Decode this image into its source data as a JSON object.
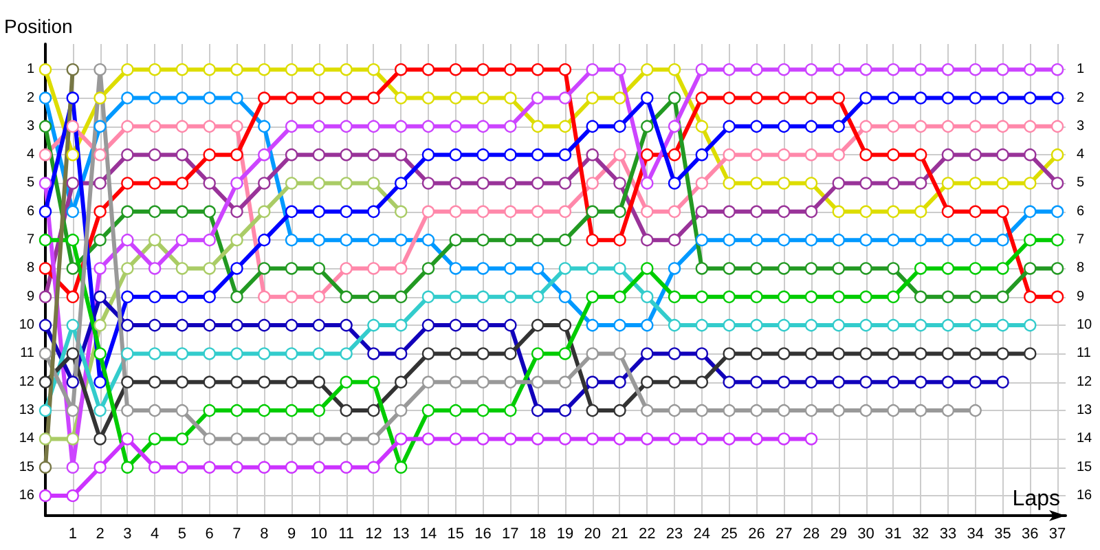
{
  "chart_data": {
    "type": "line",
    "xlabel": "Laps",
    "ylabel": "Position",
    "x": [
      0,
      1,
      2,
      3,
      4,
      5,
      6,
      7,
      8,
      9,
      10,
      11,
      12,
      13,
      14,
      15,
      16,
      17,
      18,
      19,
      20,
      21,
      22,
      23,
      24,
      25,
      26,
      27,
      28,
      29,
      30,
      31,
      32,
      33,
      34,
      35,
      36,
      37
    ],
    "xlim": [
      0,
      37.3
    ],
    "xticks": [
      1,
      2,
      3,
      4,
      5,
      6,
      7,
      8,
      9,
      10,
      11,
      12,
      13,
      14,
      15,
      16,
      17,
      18,
      19,
      20,
      21,
      22,
      23,
      24,
      25,
      26,
      27,
      28,
      29,
      30,
      31,
      32,
      33,
      34,
      35,
      36,
      37
    ],
    "ylim": [
      16.7,
      0.1
    ],
    "yticks": [
      1,
      2,
      3,
      4,
      5,
      6,
      7,
      8,
      9,
      10,
      11,
      12,
      13,
      14,
      15,
      16
    ],
    "y2lim": [
      16.7,
      0.1
    ],
    "y2ticks": [
      1,
      2,
      3,
      4,
      5,
      6,
      7,
      8,
      9,
      10,
      11,
      12,
      13,
      14,
      15,
      16
    ],
    "grid": true,
    "marker": "circle",
    "line_style": "solid",
    "series": [
      {
        "color": "#dddd00",
        "values": [
          1,
          4,
          2,
          1,
          1,
          1,
          1,
          1,
          1,
          1,
          1,
          1,
          1,
          2,
          2,
          2,
          2,
          2,
          3,
          3,
          2,
          2,
          1,
          1,
          3,
          5,
          5,
          5,
          5,
          6,
          6,
          6,
          6,
          5,
          5,
          5,
          5,
          4
        ]
      },
      {
        "color": "#0099ff",
        "values": [
          2,
          6,
          3,
          2,
          2,
          2,
          2,
          2,
          3,
          7,
          7,
          7,
          7,
          7,
          7,
          8,
          8,
          8,
          8,
          9,
          10,
          10,
          10,
          8,
          7,
          7,
          7,
          7,
          7,
          7,
          7,
          7,
          7,
          7,
          7,
          7,
          6,
          6
        ]
      },
      {
        "color": "#ff88aa",
        "values": [
          4,
          3,
          4,
          3,
          3,
          3,
          3,
          3,
          9,
          9,
          9,
          8,
          8,
          8,
          6,
          6,
          6,
          6,
          6,
          6,
          5,
          4,
          6,
          6,
          5,
          4,
          4,
          4,
          4,
          4,
          3,
          3,
          3,
          3,
          3,
          3,
          3,
          3
        ]
      },
      {
        "color": "#993399",
        "values": [
          9,
          5,
          5,
          4,
          4,
          4,
          5,
          6,
          5,
          4,
          4,
          4,
          4,
          4,
          5,
          5,
          5,
          5,
          5,
          5,
          4,
          5,
          7,
          7,
          6,
          6,
          6,
          6,
          6,
          5,
          5,
          5,
          5,
          4,
          4,
          4,
          4,
          5
        ]
      },
      {
        "color": "#ff0000",
        "values": [
          8,
          9,
          6,
          5,
          5,
          5,
          4,
          4,
          2,
          2,
          2,
          2,
          2,
          1,
          1,
          1,
          1,
          1,
          1,
          1,
          7,
          7,
          4,
          4,
          2,
          2,
          2,
          2,
          2,
          2,
          4,
          4,
          4,
          6,
          6,
          6,
          9,
          9
        ]
      },
      {
        "color": "#229922",
        "values": [
          3,
          8,
          7,
          6,
          6,
          6,
          6,
          9,
          8,
          8,
          8,
          9,
          9,
          9,
          8,
          7,
          7,
          7,
          7,
          7,
          6,
          6,
          3,
          2,
          8,
          8,
          8,
          8,
          8,
          8,
          8,
          8,
          9,
          9,
          9,
          9,
          8,
          8
        ]
      },
      {
        "color": "#aacc66",
        "values": [
          14,
          14,
          10,
          8,
          7,
          8,
          8,
          7,
          6,
          5,
          5,
          5,
          5,
          6,
          null,
          null,
          null,
          null,
          null,
          null,
          null,
          null,
          null,
          null,
          null,
          null,
          null,
          null,
          null,
          null,
          null,
          null,
          null,
          null,
          null,
          null,
          null,
          null
        ]
      },
      {
        "color": "#cc44ff",
        "values": [
          5,
          15,
          8,
          7,
          8,
          7,
          7,
          5,
          4,
          3,
          3,
          3,
          3,
          3,
          3,
          3,
          3,
          3,
          2,
          2,
          1,
          1,
          5,
          3,
          1,
          1,
          1,
          1,
          1,
          1,
          1,
          1,
          1,
          1,
          1,
          1,
          1,
          1
        ]
      },
      {
        "color": "#0000ff",
        "values": [
          6,
          2,
          12,
          9,
          9,
          9,
          9,
          8,
          7,
          6,
          6,
          6,
          6,
          5,
          4,
          4,
          4,
          4,
          4,
          4,
          3,
          3,
          2,
          5,
          4,
          3,
          3,
          3,
          3,
          3,
          2,
          2,
          2,
          2,
          2,
          2,
          2,
          2
        ]
      },
      {
        "color": "#1100bb",
        "values": [
          10,
          12,
          9,
          10,
          10,
          10,
          10,
          10,
          10,
          10,
          10,
          10,
          11,
          11,
          10,
          10,
          10,
          10,
          13,
          13,
          12,
          12,
          11,
          11,
          11,
          12,
          12,
          12,
          12,
          12,
          12,
          12,
          12,
          12,
          12,
          12,
          null,
          null
        ]
      },
      {
        "color": "#33cccc",
        "values": [
          13,
          10,
          13,
          11,
          11,
          11,
          11,
          11,
          11,
          11,
          11,
          11,
          10,
          10,
          9,
          9,
          9,
          9,
          9,
          8,
          8,
          8,
          9,
          10,
          10,
          10,
          10,
          10,
          10,
          10,
          10,
          10,
          10,
          10,
          10,
          10,
          10,
          null
        ]
      },
      {
        "color": "#333333",
        "values": [
          12,
          11,
          14,
          12,
          12,
          12,
          12,
          12,
          12,
          12,
          12,
          13,
          13,
          12,
          11,
          11,
          11,
          11,
          10,
          10,
          13,
          13,
          12,
          12,
          12,
          11,
          11,
          11,
          11,
          11,
          11,
          11,
          11,
          11,
          11,
          11,
          11,
          null
        ]
      },
      {
        "color": "#00cc00",
        "values": [
          7,
          7,
          11,
          15,
          14,
          14,
          13,
          13,
          13,
          13,
          13,
          12,
          12,
          15,
          13,
          13,
          13,
          13,
          11,
          11,
          9,
          9,
          8,
          9,
          9,
          9,
          9,
          9,
          9,
          9,
          9,
          9,
          8,
          8,
          8,
          8,
          7,
          7
        ]
      },
      {
        "color": "#999999",
        "values": [
          11,
          13,
          1,
          13,
          13,
          13,
          14,
          14,
          14,
          14,
          14,
          14,
          14,
          13,
          12,
          12,
          12,
          12,
          12,
          12,
          11,
          11,
          13,
          13,
          13,
          13,
          13,
          13,
          13,
          13,
          13,
          13,
          13,
          13,
          13,
          null,
          null,
          null
        ]
      },
      {
        "color": "#777744",
        "values": [
          15,
          1,
          null,
          null,
          null,
          null,
          null,
          null,
          null,
          null,
          null,
          null,
          null,
          null,
          null,
          null,
          null,
          null,
          null,
          null,
          null,
          null,
          null,
          null,
          null,
          null,
          null,
          null,
          null,
          null,
          null,
          null,
          null,
          null,
          null,
          null,
          null,
          null
        ]
      },
      {
        "color": "#cc33ff",
        "values": [
          16,
          16,
          15,
          14,
          15,
          15,
          15,
          15,
          15,
          15,
          15,
          15,
          15,
          14,
          14,
          14,
          14,
          14,
          14,
          14,
          14,
          14,
          14,
          14,
          14,
          14,
          14,
          14,
          14,
          null,
          null,
          null,
          null,
          null,
          null,
          null,
          null,
          null
        ]
      }
    ]
  }
}
